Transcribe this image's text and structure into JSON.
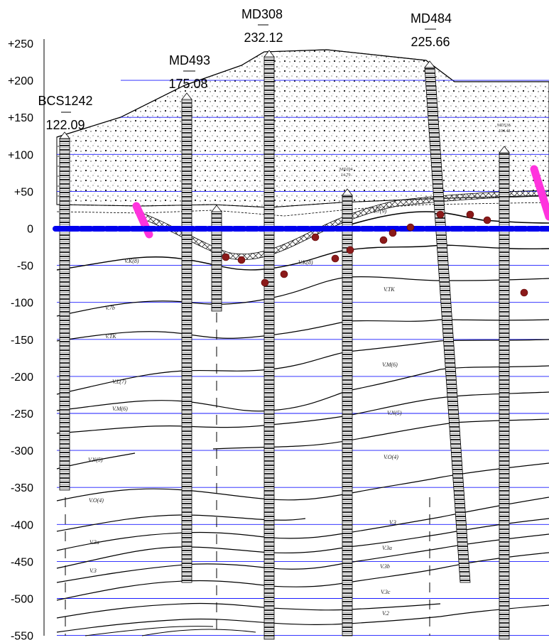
{
  "section": {
    "elevation_labels": [
      "+250",
      "+200",
      "+150",
      "+100",
      "+50",
      "0",
      "-50",
      "-100",
      "-150",
      "-200",
      "-250",
      "-300",
      "-350",
      "-400",
      "-450",
      "-500",
      "-550"
    ],
    "boreholes": [
      {
        "name": "BCS1242",
        "elevation": "122.09"
      },
      {
        "name": "MD493",
        "elevation": "175.08"
      },
      {
        "name": "MD308",
        "elevation": "232.12"
      },
      {
        "name": "MD484",
        "elevation": "225.66"
      }
    ],
    "minor_boreholes": [
      {
        "name": "MD204",
        "elevation": "14.79"
      },
      {
        "name": "MD538",
        "elevation": "104.48"
      }
    ],
    "seam_labels": [
      "V.K(8)",
      "V.7b",
      "V.TK",
      "V.L(7)",
      "V.M(6)",
      "V.N(5)",
      "V.O(4)",
      "V.3a",
      "V.3",
      "V.K(8)",
      "V.7(9)",
      "V.TK",
      "V.M(6)",
      "V.N(5)",
      "V.O(4)",
      "V.3",
      "V.3a",
      "V.3b",
      "V.3c",
      "V.2"
    ],
    "colors": {
      "grid": "#1a1aff",
      "sea_level": "#0000ee",
      "fault": "#ff33dd",
      "samples": "#8b1a1a"
    }
  }
}
